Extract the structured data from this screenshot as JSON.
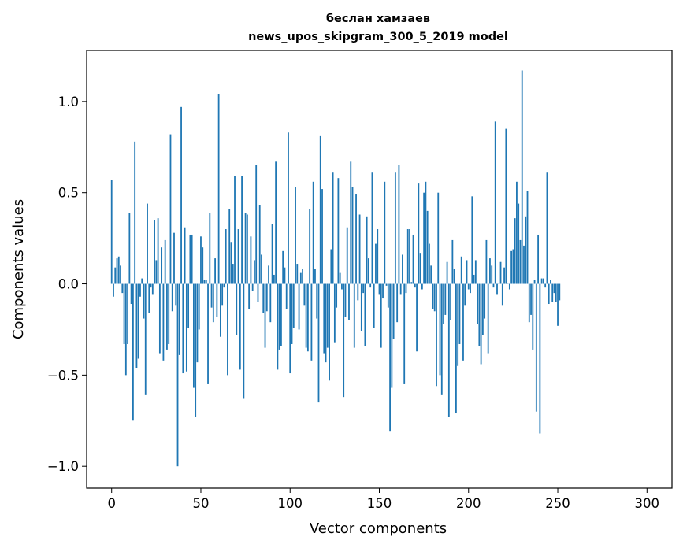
{
  "chart_data": {
    "type": "bar",
    "title_line1": "беслан хамзаев",
    "title_line2": "news_upos_skipgram_300_5_2019 model",
    "xlabel": "Vector components",
    "ylabel": "Components values",
    "xlim": [
      -14,
      314
    ],
    "ylim": [
      -1.12,
      1.28
    ],
    "xticks": [
      0,
      50,
      100,
      150,
      200,
      250,
      300
    ],
    "xtick_labels": [
      "0",
      "50",
      "100",
      "150",
      "200",
      "250",
      "300"
    ],
    "yticks": [
      -1.0,
      -0.5,
      0.0,
      0.5,
      1.0
    ],
    "ytick_labels": [
      "−1.0",
      "−0.5",
      "0.0",
      "0.5",
      "1.0"
    ],
    "grid": false,
    "bar_color": "#1f77b4",
    "values": [
      0.57,
      -0.07,
      0.09,
      0.14,
      0.15,
      0.1,
      -0.05,
      -0.33,
      -0.5,
      -0.33,
      0.39,
      -0.11,
      -0.75,
      0.78,
      -0.46,
      -0.41,
      -0.07,
      0.03,
      -0.19,
      -0.61,
      0.44,
      -0.16,
      -0.02,
      -0.06,
      0.35,
      0.13,
      0.36,
      -0.38,
      0.2,
      -0.42,
      0.24,
      -0.36,
      -0.33,
      0.82,
      -0.15,
      0.28,
      -0.12,
      -1.0,
      -0.39,
      0.97,
      -0.49,
      0.31,
      -0.48,
      -0.24,
      0.27,
      0.27,
      -0.57,
      -0.73,
      -0.43,
      -0.25,
      0.26,
      0.2,
      0.02,
      0.02,
      -0.55,
      0.39,
      -0.13,
      -0.21,
      0.14,
      -0.18,
      1.04,
      -0.29,
      -0.12,
      -0.02,
      0.3,
      -0.5,
      0.41,
      0.23,
      0.11,
      0.59,
      -0.28,
      0.3,
      -0.47,
      0.59,
      -0.63,
      0.39,
      0.38,
      -0.14,
      0.26,
      -0.04,
      0.13,
      0.65,
      -0.1,
      0.43,
      0.16,
      -0.16,
      -0.35,
      -0.15,
      0.1,
      -0.21,
      0.33,
      0.05,
      0.67,
      -0.47,
      -0.36,
      -0.34,
      0.18,
      0.09,
      -0.14,
      0.83,
      -0.49,
      -0.33,
      -0.24,
      0.53,
      0.11,
      -0.25,
      0.06,
      0.08,
      -0.12,
      -0.35,
      -0.37,
      0.41,
      -0.42,
      0.56,
      0.08,
      -0.19,
      -0.65,
      0.81,
      0.52,
      -0.38,
      -0.43,
      -0.35,
      -0.53,
      0.19,
      0.61,
      -0.32,
      -0.13,
      0.58,
      0.06,
      -0.03,
      -0.62,
      -0.18,
      0.31,
      -0.2,
      0.67,
      0.53,
      -0.35,
      0.49,
      -0.09,
      0.38,
      -0.26,
      -0.05,
      -0.34,
      0.37,
      0.14,
      -0.02,
      0.61,
      -0.24,
      0.22,
      0.3,
      -0.06,
      -0.35,
      -0.08,
      0.56,
      -0.01,
      -0.13,
      -0.81,
      -0.57,
      -0.3,
      0.61,
      -0.21,
      0.65,
      -0.06,
      0.16,
      -0.55,
      -0.05,
      0.3,
      0.3,
      0.01,
      0.27,
      -0.02,
      -0.37,
      0.55,
      0.17,
      -0.03,
      0.5,
      0.56,
      0.4,
      0.22,
      0.1,
      -0.14,
      -0.15,
      -0.56,
      0.5,
      -0.5,
      -0.61,
      -0.22,
      -0.17,
      0.12,
      -0.73,
      -0.2,
      0.24,
      0.08,
      -0.71,
      -0.45,
      -0.33,
      0.15,
      -0.42,
      -0.12,
      0.13,
      -0.03,
      -0.05,
      0.48,
      0.05,
      0.13,
      -0.22,
      -0.34,
      -0.44,
      -0.28,
      -0.19,
      0.24,
      -0.38,
      0.14,
      0.1,
      -0.02,
      0.89,
      -0.06,
      0.0,
      0.12,
      -0.12,
      0.09,
      0.85,
      0.0,
      -0.03,
      0.18,
      0.19,
      0.36,
      0.56,
      0.44,
      0.24,
      1.17,
      0.21,
      0.37,
      0.51,
      -0.21,
      -0.17,
      -0.36,
      0.02,
      -0.7,
      0.27,
      -0.82,
      0.03,
      0.03,
      -0.02,
      0.61,
      -0.11,
      0.02,
      -0.1,
      -0.05,
      -0.1,
      -0.23,
      -0.09
    ]
  }
}
